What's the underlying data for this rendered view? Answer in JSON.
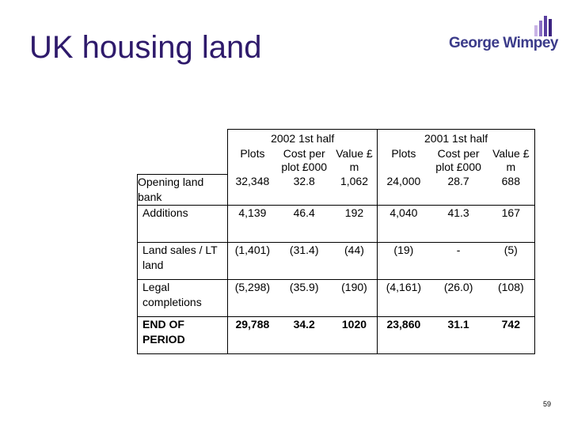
{
  "title": "UK housing land",
  "logo": {
    "text": "George Wimpey",
    "bar_colors": [
      "#c9b3e6",
      "#8a6fc4",
      "#5a3fa0",
      "#3b2280"
    ]
  },
  "table": {
    "periods": [
      "2002  1st half",
      "2001  1st half"
    ],
    "columns": [
      "Plots",
      "Cost per plot £000",
      "Value £ m"
    ],
    "rows": [
      {
        "label": "Opening land bank",
        "values": [
          "32,348",
          "32.8",
          "1,062",
          "24,000",
          "28.7",
          "688"
        ]
      },
      {
        "label": "Additions",
        "values": [
          "4,139",
          "46.4",
          "192",
          "4,040",
          "41.3",
          "167"
        ]
      },
      {
        "label": "Land sales / LT land",
        "values": [
          "(1,401)",
          "(31.4)",
          "(44)",
          "(19)",
          "-",
          "(5)"
        ]
      },
      {
        "label": "Legal completions",
        "values": [
          "(5,298)",
          "(35.9)",
          "(190)",
          "(4,161)",
          "(26.0)",
          "(108)"
        ]
      },
      {
        "label": "END OF PERIOD",
        "values": [
          "29,788",
          "34.2",
          "1020",
          "23,860",
          "31.1",
          "742"
        ]
      }
    ]
  },
  "page_number": "59"
}
